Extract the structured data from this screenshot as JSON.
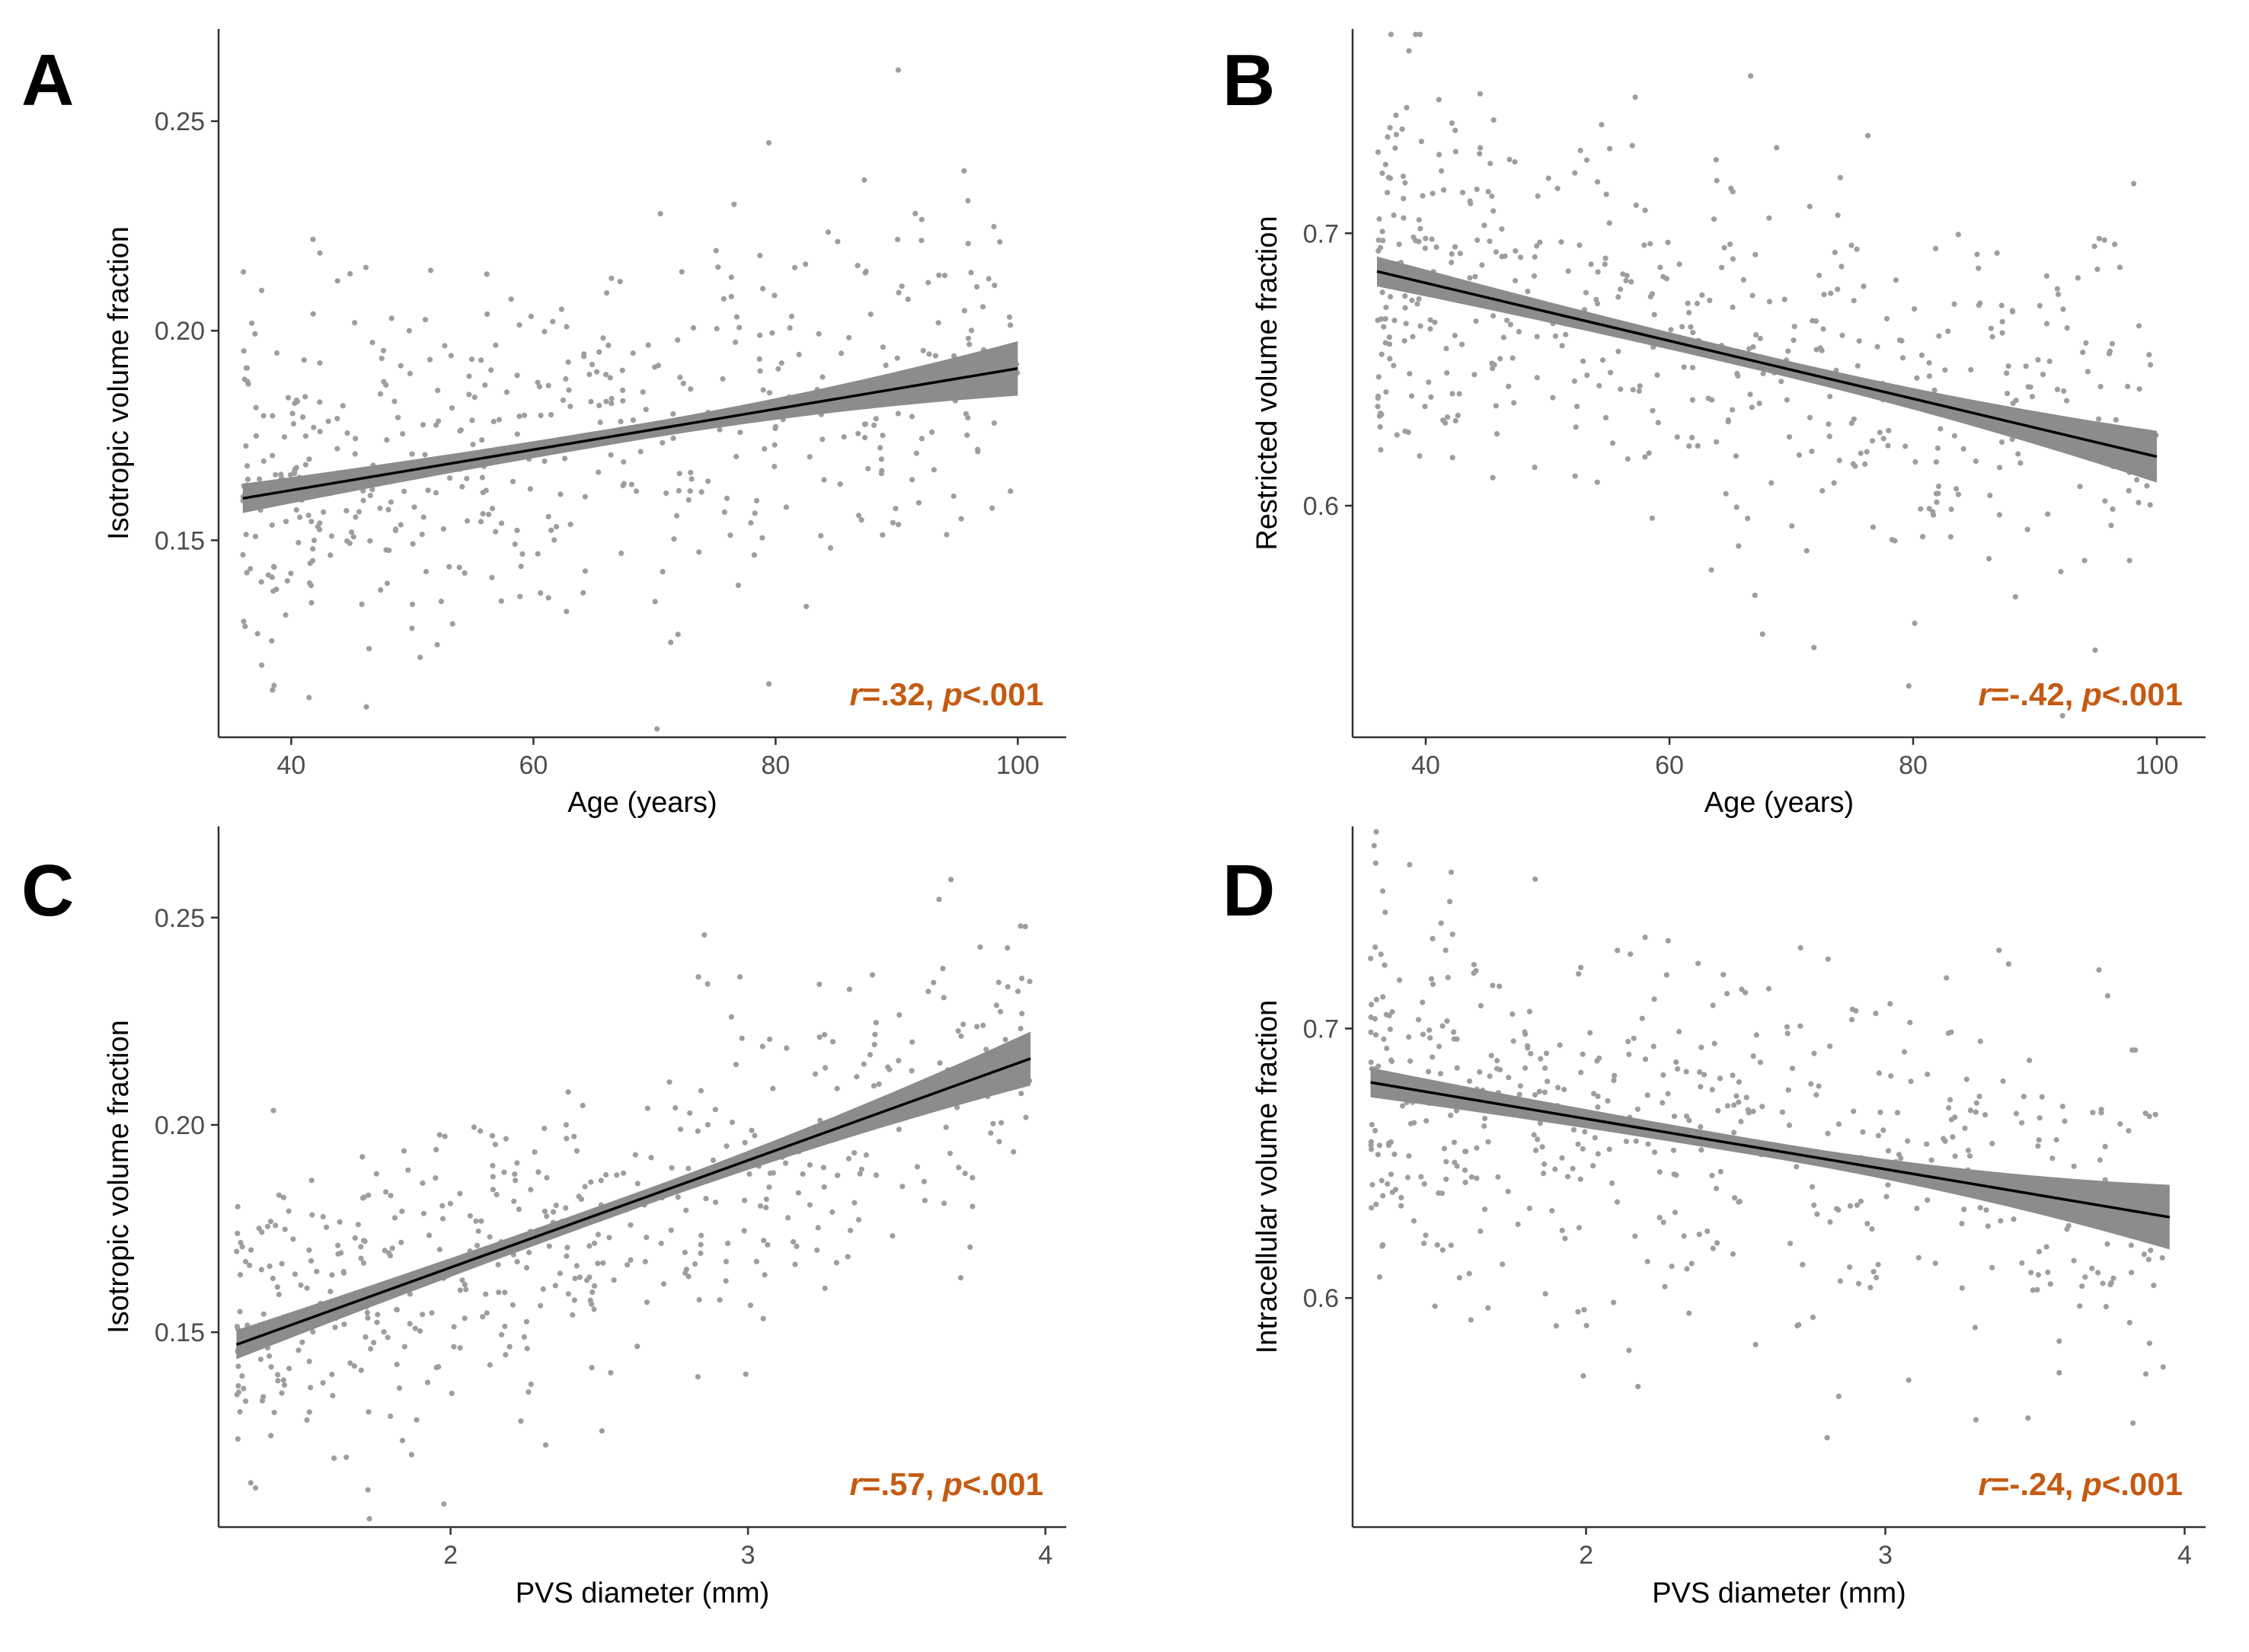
{
  "colors": {
    "points": "#9e9e9e",
    "ci_band": "#8c8c8c",
    "fit_line": "#000000",
    "stat_text": "#c55a11",
    "axis": "#333333",
    "tick_text": "#4d4d4d"
  },
  "chart_data": [
    {
      "panel": "A",
      "type": "scatter",
      "xlabel": "Age (years)",
      "ylabel": "Isotropic volume fraction",
      "xlim": [
        34,
        104
      ],
      "ylim": [
        0.103,
        0.272
      ],
      "xticks": [
        40,
        60,
        80,
        100
      ],
      "xtick_labels": [
        "40",
        "60",
        "80",
        "100"
      ],
      "yticks": [
        0.15,
        0.2,
        0.25
      ],
      "ytick_labels": [
        "0.15",
        "0.20",
        "0.25"
      ],
      "x_range": [
        36,
        100
      ],
      "fit": {
        "x0": 36,
        "y0": 0.16,
        "x1": 100,
        "y1": 0.191
      },
      "ci": {
        "se0": 0.0035,
        "se1": 0.0065
      },
      "scatter_sd": 0.022,
      "n_points": 520,
      "seed": 11,
      "r_label": "r",
      "r_value": "=.32, ",
      "p_label": "p",
      "p_value": "<.001"
    },
    {
      "panel": "B",
      "type": "scatter",
      "xlabel": "Age (years)",
      "ylabel": "Restricted volume fraction",
      "xlim": [
        34,
        104
      ],
      "ylim": [
        0.515,
        0.775
      ],
      "xticks": [
        40,
        60,
        80,
        100
      ],
      "xtick_labels": [
        "40",
        "60",
        "80",
        "100"
      ],
      "yticks": [
        0.6,
        0.7
      ],
      "ytick_labels": [
        "0.6",
        "0.7"
      ],
      "x_range": [
        36,
        100
      ],
      "fit": {
        "x0": 36,
        "y0": 0.686,
        "x1": 100,
        "y1": 0.618
      },
      "ci": {
        "se0": 0.0055,
        "se1": 0.0095
      },
      "scatter_sd": 0.036,
      "n_points": 520,
      "seed": 23,
      "r_label": "r",
      "r_value": "=-.42, ",
      "p_label": "p",
      "p_value": "<.001"
    },
    {
      "panel": "C",
      "type": "scatter",
      "xlabel": "PVS diameter (mm)",
      "ylabel": "Isotropic volume fraction",
      "xlim": [
        1.22,
        4.07
      ],
      "ylim": [
        0.103,
        0.272
      ],
      "xticks": [
        2,
        3,
        4
      ],
      "xtick_labels": [
        "2",
        "3",
        "4"
      ],
      "yticks": [
        0.15,
        0.2,
        0.25
      ],
      "ytick_labels": [
        "0.15",
        "0.20",
        "0.25"
      ],
      "x_range": [
        1.28,
        3.95
      ],
      "fit": {
        "x0": 1.28,
        "y0": 0.147,
        "x1": 3.95,
        "y1": 0.216
      },
      "ci": {
        "se0": 0.0035,
        "se1": 0.0065
      },
      "scatter_sd": 0.019,
      "n_points": 520,
      "seed": 37,
      "r_label": "r",
      "r_value": "=.57, ",
      "p_label": "p",
      "p_value": "<.001"
    },
    {
      "panel": "D",
      "type": "scatter",
      "xlabel": "PVS diameter (mm)",
      "ylabel": "Intracellular volume fraction",
      "xlim": [
        1.22,
        4.07
      ],
      "ylim": [
        0.515,
        0.775
      ],
      "xticks": [
        2,
        3,
        4
      ],
      "xtick_labels": [
        "2",
        "3",
        "4"
      ],
      "yticks": [
        0.6,
        0.7
      ],
      "ytick_labels": [
        "0.6",
        "0.7"
      ],
      "x_range": [
        1.28,
        3.95
      ],
      "fit": {
        "x0": 1.28,
        "y0": 0.68,
        "x1": 3.95,
        "y1": 0.63
      },
      "ci": {
        "se0": 0.0055,
        "se1": 0.012
      },
      "scatter_sd": 0.036,
      "n_points": 520,
      "seed": 53,
      "r_label": "r",
      "r_value": "=-.24, ",
      "p_label": "p",
      "p_value": "<.001"
    }
  ]
}
